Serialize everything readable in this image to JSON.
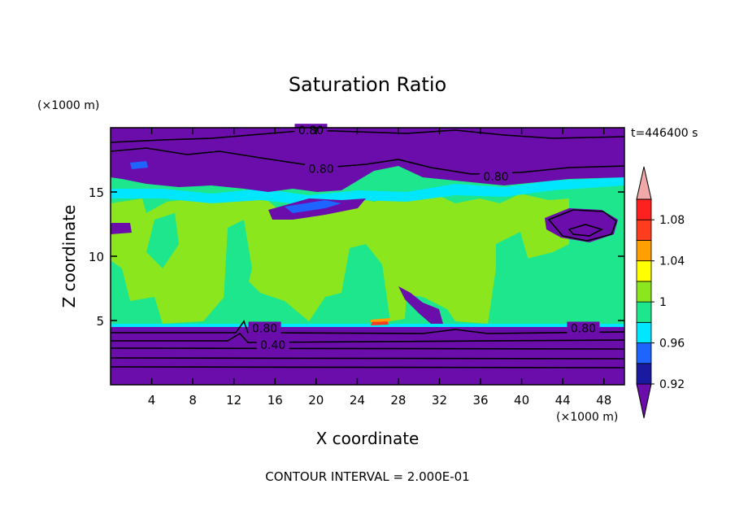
{
  "chart_data": {
    "type": "heatmap",
    "title": "Saturation Ratio",
    "xlabel": "X coordinate",
    "ylabel": "Z coordinate",
    "x_unit": "(×1000 m)",
    "y_unit": "(×1000 m)",
    "time_label": "t=446400 s",
    "footer": "CONTOUR INTERVAL = 2.000E-01",
    "xlim": [
      0,
      50
    ],
    "ylim": [
      0,
      20
    ],
    "x_ticks": [
      4,
      8,
      12,
      16,
      20,
      24,
      28,
      32,
      36,
      40,
      44,
      48
    ],
    "y_ticks": [
      5,
      10,
      15
    ],
    "colorbar": {
      "levels": [
        0.92,
        0.94,
        0.96,
        0.98,
        1.0,
        1.02,
        1.04,
        1.06,
        1.08,
        1.1
      ],
      "labels": [
        {
          "value": 0.92,
          "text": "0.92"
        },
        {
          "value": 0.96,
          "text": "0.96"
        },
        {
          "value": 1.0,
          "text": "1"
        },
        {
          "value": 1.04,
          "text": "1.04"
        },
        {
          "value": 1.08,
          "text": "1.08"
        }
      ],
      "colors": [
        "#6a0dab",
        "#1a1aa0",
        "#1e64ff",
        "#00e6ff",
        "#1ee68c",
        "#8ce61e",
        "#ffff00",
        "#ffa000",
        "#ff3c1e",
        "#ff2020",
        "#f0a8a8"
      ]
    },
    "contour_labels": [
      {
        "x": 19.5,
        "z": 19.8,
        "text": "0.80"
      },
      {
        "x": 20.5,
        "z": 16.8,
        "text": "0.80"
      },
      {
        "x": 37.5,
        "z": 16.2,
        "text": "0.80"
      },
      {
        "x": 15.0,
        "z": 4.4,
        "text": "0.80"
      },
      {
        "x": 46.0,
        "z": 4.4,
        "text": "0.80"
      },
      {
        "x": 15.8,
        "z": 3.1,
        "text": "0.40"
      }
    ]
  }
}
